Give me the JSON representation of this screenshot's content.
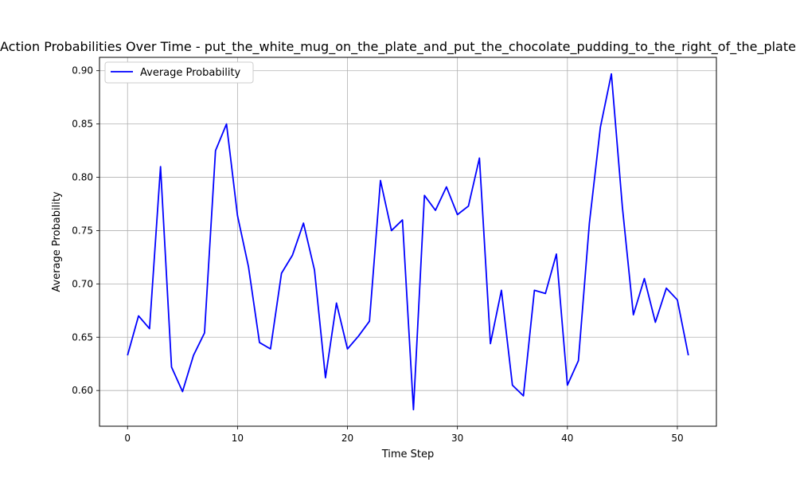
{
  "chart_data": {
    "type": "line",
    "title": "Action Probabilities Over Time - put_the_white_mug_on_the_plate_and_put_the_chocolate_pudding_to_the_right_of_the_plate",
    "xlabel": "Time Step",
    "ylabel": "Average Probability",
    "xlim": [
      -2.55,
      53.55
    ],
    "ylim": [
      0.5665,
      0.9125
    ],
    "xticks": [
      0,
      10,
      20,
      30,
      40,
      50
    ],
    "yticks": [
      0.6,
      0.65,
      0.7,
      0.75,
      0.8,
      0.85,
      0.9
    ],
    "grid": true,
    "legend_position": "upper-left",
    "series": [
      {
        "name": "Average Probability",
        "color": "#0000ff",
        "x": [
          0,
          1,
          2,
          3,
          4,
          5,
          6,
          7,
          8,
          9,
          10,
          11,
          12,
          13,
          14,
          15,
          16,
          17,
          18,
          19,
          20,
          21,
          22,
          23,
          24,
          25,
          26,
          27,
          28,
          29,
          30,
          31,
          32,
          33,
          34,
          35,
          36,
          37,
          38,
          39,
          40,
          41,
          42,
          43,
          44,
          45,
          46,
          47,
          48,
          49,
          50,
          51
        ],
        "values": [
          0.633,
          0.67,
          0.658,
          0.81,
          0.622,
          0.599,
          0.633,
          0.654,
          0.825,
          0.85,
          0.764,
          0.716,
          0.645,
          0.639,
          0.71,
          0.727,
          0.757,
          0.713,
          0.612,
          0.682,
          0.639,
          0.651,
          0.665,
          0.797,
          0.75,
          0.76,
          0.582,
          0.783,
          0.769,
          0.791,
          0.765,
          0.773,
          0.818,
          0.644,
          0.694,
          0.605,
          0.595,
          0.694,
          0.691,
          0.728,
          0.605,
          0.628,
          0.757,
          0.847,
          0.897,
          0.772,
          0.671,
          0.705,
          0.664,
          0.696,
          0.685,
          0.633
        ]
      }
    ]
  }
}
